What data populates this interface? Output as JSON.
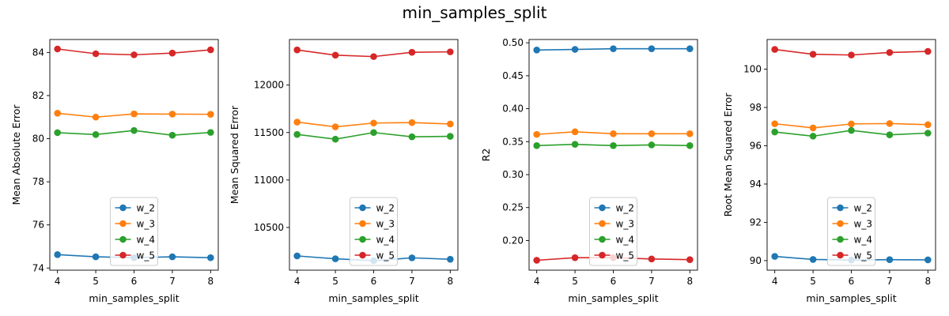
{
  "figure": {
    "title": "min_samples_split"
  },
  "colors": {
    "w_2": "#1f77b4",
    "w_3": "#ff7f0e",
    "w_4": "#2ca02c",
    "w_5": "#d62728"
  },
  "chart_data": [
    {
      "type": "line",
      "xlabel": "min_samples_split",
      "ylabel": "Mean Absolute Error",
      "x": [
        4,
        5,
        6,
        7,
        8
      ],
      "xticks": [
        4,
        5,
        6,
        7,
        8
      ],
      "yticks": [
        74,
        76,
        78,
        80,
        82,
        84
      ],
      "ylim": [
        73.9,
        84.6
      ],
      "legend": "lower-center",
      "grid": false,
      "series": [
        {
          "name": "w_2",
          "values": [
            74.62,
            74.52,
            74.48,
            74.52,
            74.48
          ]
        },
        {
          "name": "w_3",
          "values": [
            81.18,
            81.0,
            81.15,
            81.14,
            81.13
          ]
        },
        {
          "name": "w_4",
          "values": [
            80.28,
            80.19,
            80.38,
            80.16,
            80.29
          ]
        },
        {
          "name": "w_5",
          "values": [
            84.16,
            83.94,
            83.89,
            83.97,
            84.12
          ]
        }
      ]
    },
    {
      "type": "line",
      "xlabel": "min_samples_split",
      "ylabel": "Mean Squared Error",
      "x": [
        4,
        5,
        6,
        7,
        8
      ],
      "xticks": [
        4,
        5,
        6,
        7,
        8
      ],
      "yticks": [
        10500,
        11000,
        11500,
        12000
      ],
      "ylim": [
        10050,
        12480
      ],
      "legend": "lower-center",
      "grid": false,
      "series": [
        {
          "name": "w_2",
          "values": [
            10200,
            10170,
            10150,
            10180,
            10165
          ]
        },
        {
          "name": "w_3",
          "values": [
            11610,
            11560,
            11600,
            11605,
            11590
          ]
        },
        {
          "name": "w_4",
          "values": [
            11480,
            11430,
            11500,
            11455,
            11460
          ]
        },
        {
          "name": "w_5",
          "values": [
            12370,
            12315,
            12300,
            12345,
            12350
          ]
        }
      ]
    },
    {
      "type": "line",
      "xlabel": "min_samples_split",
      "ylabel": "R2",
      "x": [
        4,
        5,
        6,
        7,
        8
      ],
      "xticks": [
        4,
        5,
        6,
        7,
        8
      ],
      "yticks": [
        0.2,
        0.25,
        0.3,
        0.35,
        0.4,
        0.45,
        0.5
      ],
      "ylim": [
        0.155,
        0.505
      ],
      "legend": "lower-center",
      "grid": false,
      "series": [
        {
          "name": "w_2",
          "values": [
            0.489,
            0.49,
            0.491,
            0.491,
            0.491
          ]
        },
        {
          "name": "w_3",
          "values": [
            0.361,
            0.365,
            0.362,
            0.362,
            0.362
          ]
        },
        {
          "name": "w_4",
          "values": [
            0.344,
            0.346,
            0.344,
            0.345,
            0.344
          ]
        },
        {
          "name": "w_5",
          "values": [
            0.17,
            0.174,
            0.174,
            0.172,
            0.171
          ]
        }
      ]
    },
    {
      "type": "line",
      "xlabel": "min_samples_split",
      "ylabel": "Root Mean Squared Error",
      "x": [
        4,
        5,
        6,
        7,
        8
      ],
      "xticks": [
        4,
        5,
        6,
        7,
        8
      ],
      "yticks": [
        90,
        92,
        94,
        96,
        98,
        100
      ],
      "ylim": [
        89.5,
        101.55
      ],
      "legend": "lower-center",
      "grid": false,
      "series": [
        {
          "name": "w_2",
          "values": [
            90.22,
            90.06,
            90.03,
            90.05,
            90.04
          ]
        },
        {
          "name": "w_3",
          "values": [
            97.15,
            96.93,
            97.14,
            97.16,
            97.1
          ]
        },
        {
          "name": "w_4",
          "values": [
            96.72,
            96.5,
            96.8,
            96.57,
            96.66
          ]
        },
        {
          "name": "w_5",
          "values": [
            101.03,
            100.78,
            100.74,
            100.87,
            100.93
          ]
        }
      ]
    }
  ]
}
